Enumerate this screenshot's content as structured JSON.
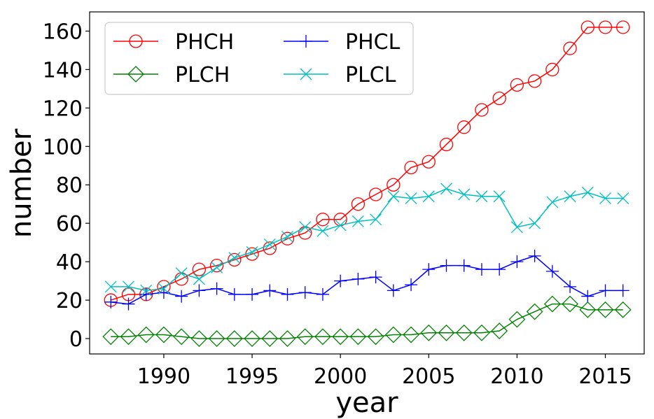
{
  "chart_data": {
    "type": "line",
    "title": "",
    "xlabel": "year",
    "ylabel": "number",
    "xlim": [
      1985.8,
      2017.2
    ],
    "ylim": [
      -8,
      170
    ],
    "xticks": [
      1990,
      1995,
      2000,
      2005,
      2010,
      2015
    ],
    "yticks": [
      0,
      20,
      40,
      60,
      80,
      100,
      120,
      140,
      160
    ],
    "grid": false,
    "legend_position": "top-left",
    "legend_columns": 2,
    "x": [
      1987,
      1988,
      1989,
      1990,
      1991,
      1992,
      1993,
      1994,
      1995,
      1996,
      1997,
      1998,
      1999,
      2000,
      2001,
      2002,
      2003,
      2004,
      2005,
      2006,
      2007,
      2008,
      2009,
      2010,
      2011,
      2012,
      2013,
      2014,
      2015,
      2016
    ],
    "series": [
      {
        "name": "PHCH",
        "color": "#ff0000",
        "marker": "circle",
        "values": [
          20,
          23,
          23,
          27,
          31,
          36,
          38,
          41,
          44,
          47,
          52,
          55,
          62,
          62,
          70,
          75,
          80,
          89,
          92,
          101,
          110,
          119,
          125,
          132,
          134,
          140,
          151,
          162,
          162,
          162
        ]
      },
      {
        "name": "PHCL",
        "color": "#0000ff",
        "marker": "plus",
        "values": [
          19,
          18,
          23,
          24,
          22,
          25,
          26,
          23,
          23,
          25,
          23,
          24,
          23,
          30,
          31,
          32,
          25,
          28,
          36,
          38,
          38,
          36,
          36,
          40,
          43,
          35,
          27,
          22,
          25,
          25
        ]
      },
      {
        "name": "PLCH",
        "color": "#008000",
        "marker": "diamond",
        "values": [
          1,
          1,
          2,
          2,
          1,
          0,
          0,
          0,
          0,
          0,
          0,
          1,
          1,
          1,
          1,
          1,
          2,
          2,
          3,
          3,
          3,
          3,
          4,
          10,
          14,
          18,
          18,
          15,
          15,
          15
        ]
      },
      {
        "name": "PLCL",
        "color": "#00bfbf",
        "marker": "x",
        "values": [
          27,
          27,
          25,
          26,
          34,
          31,
          37,
          42,
          45,
          49,
          53,
          58,
          56,
          59,
          61,
          62,
          74,
          73,
          74,
          78,
          75,
          74,
          74,
          58,
          60,
          71,
          74,
          76,
          73,
          73
        ]
      }
    ]
  }
}
